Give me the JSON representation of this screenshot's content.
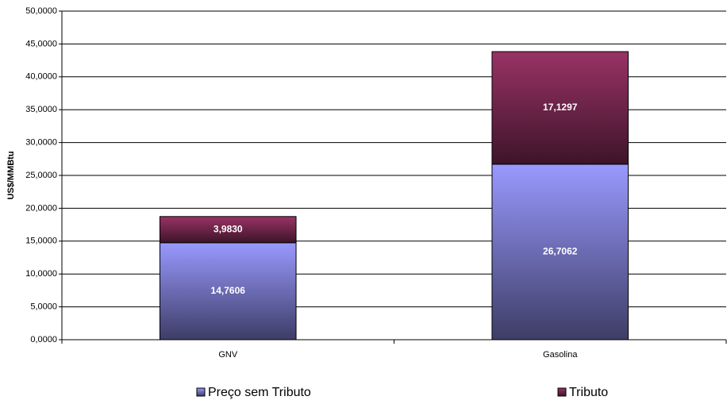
{
  "chart_data": {
    "type": "stacked_bar",
    "y_label": "US$/MMBtu",
    "categories": [
      "GNV",
      "Gasolina"
    ],
    "series": [
      {
        "name": "Preço sem Tributo",
        "color": "#9999ff",
        "values": [
          14.7606,
          26.7062
        ],
        "value_labels": [
          "14,7606",
          "26,7062"
        ]
      },
      {
        "name": "Tributo",
        "color": "#993366",
        "values": [
          3.983,
          17.1297
        ],
        "value_labels": [
          "3,9830",
          "17,1297"
        ]
      }
    ],
    "ylim": [
      0,
      50
    ],
    "yticks": [
      {
        "value": 0,
        "label": "0,0000"
      },
      {
        "value": 5,
        "label": "5,0000"
      },
      {
        "value": 10,
        "label": "10,0000"
      },
      {
        "value": 15,
        "label": "15,0000"
      },
      {
        "value": 20,
        "label": "20,0000"
      },
      {
        "value": 25,
        "label": "25,0000"
      },
      {
        "value": 30,
        "label": "30,0000"
      },
      {
        "value": 35,
        "label": "35,0000"
      },
      {
        "value": 40,
        "label": "40,0000"
      },
      {
        "value": 45,
        "label": "45,0000"
      },
      {
        "value": 50,
        "label": "50,0000"
      }
    ],
    "grid": true,
    "legend": "bottom"
  }
}
